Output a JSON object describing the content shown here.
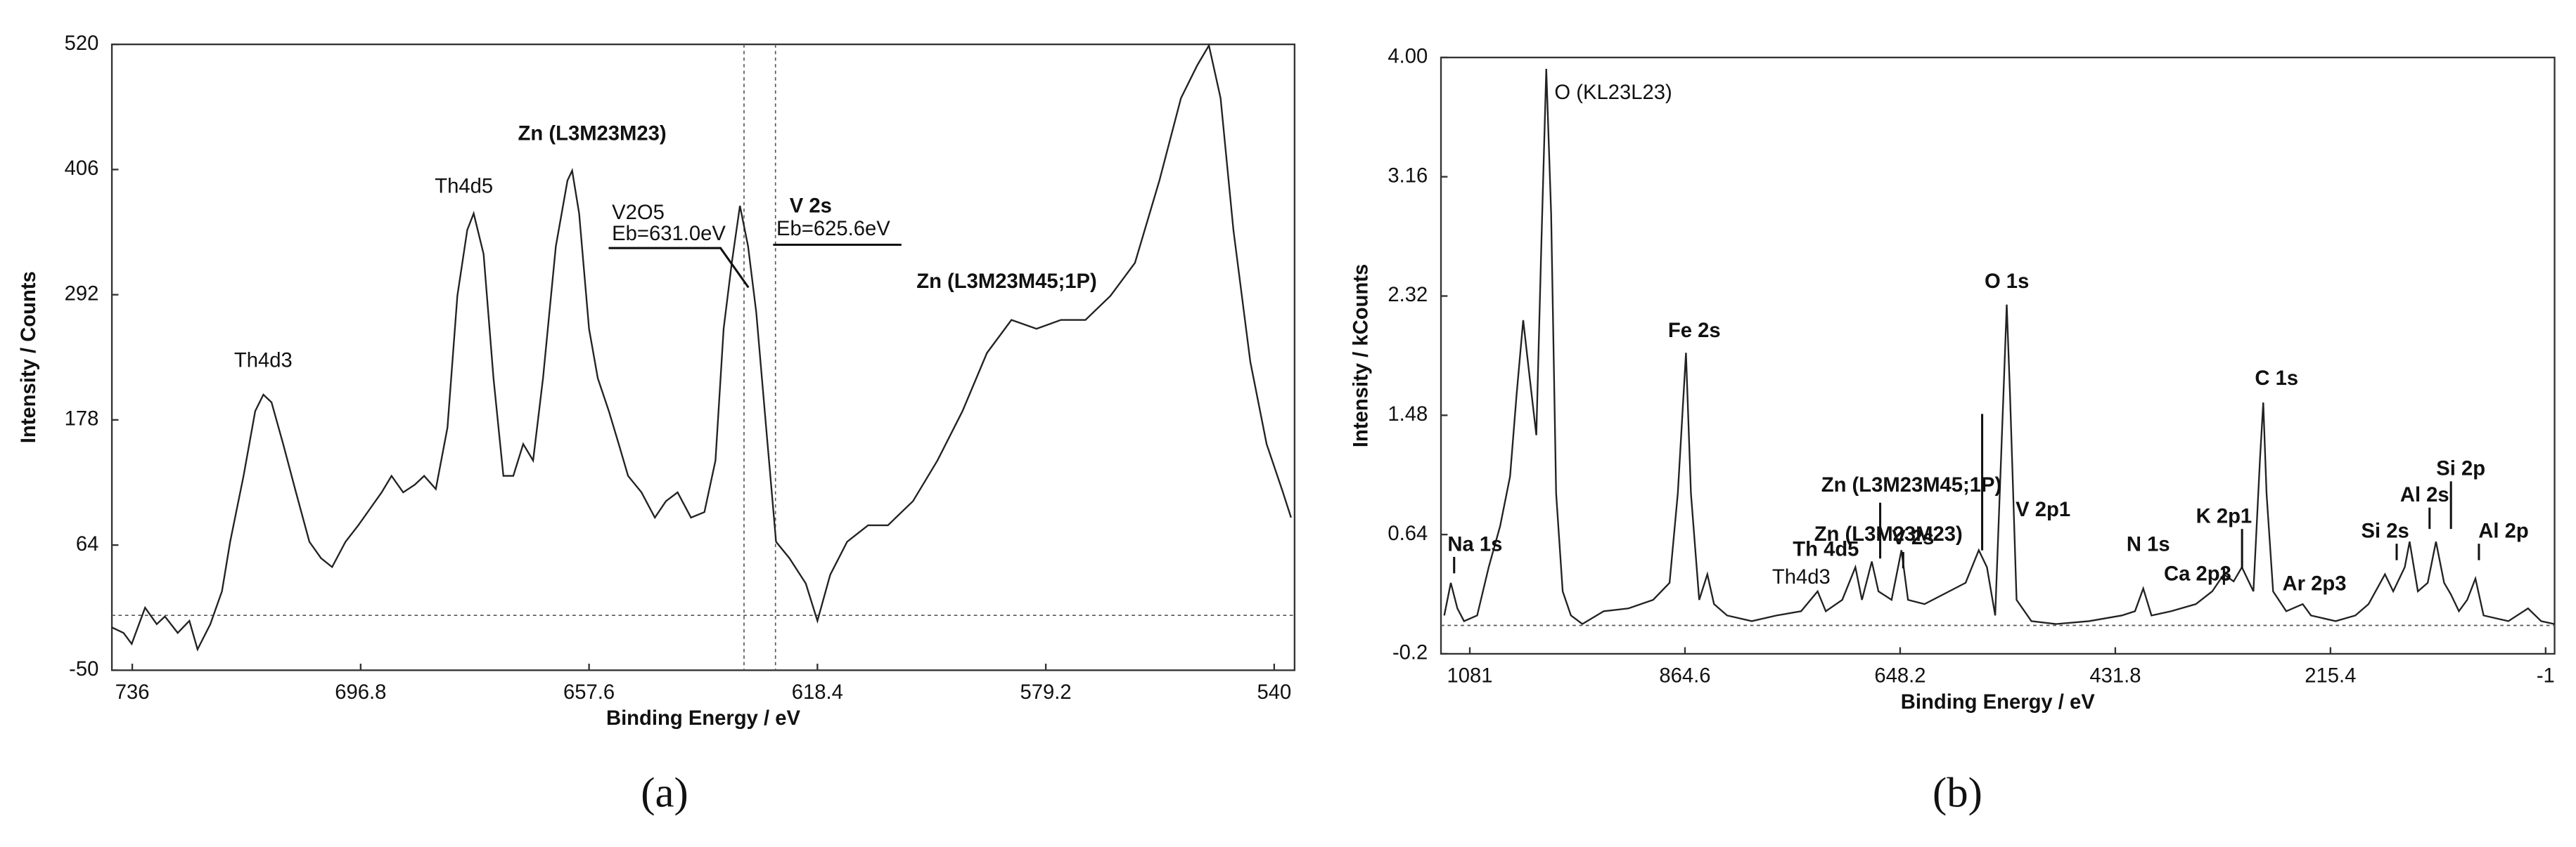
{
  "chart_data": [
    {
      "type": "line",
      "panel_label": "(a)",
      "x_label": "Binding Energy / eV",
      "y_label": "Intensity / Counts",
      "xlim": [
        739.5,
        536.5
      ],
      "xticks": [
        736,
        696.8,
        657.6,
        618.4,
        579.2,
        540
      ],
      "ylim": [
        -50,
        520
      ],
      "yticks": [
        -50,
        64,
        178,
        292,
        406,
        520
      ],
      "vlines": [
        631.0,
        625.6
      ],
      "annotations": [
        "Th4d3",
        "Th4d5",
        "Zn (L3M23M23)",
        "V2O5",
        "Eb=631.0eV",
        "V 2s",
        "Eb=625.6eV",
        "Zn (L3M23M45;1P)"
      ],
      "x": [
        739.5,
        737.5,
        736.1,
        733.8,
        731.8,
        730.4,
        728.2,
        726.2,
        724.8,
        722.6,
        720.6,
        719.2,
        716.9,
        714.9,
        713.5,
        712.1,
        710.1,
        707.9,
        705.6,
        703.6,
        701.7,
        699.4,
        697.2,
        695.2,
        693.2,
        691.5,
        689.5,
        687.5,
        685.9,
        683.9,
        681.9,
        680.2,
        678.5,
        677.4,
        675.7,
        674.0,
        672.3,
        670.6,
        668.9,
        667.2,
        665.5,
        663.3,
        661.3,
        660.5,
        659.3,
        657.6,
        656.1,
        654.2,
        652.5,
        650.9,
        648.6,
        646.3,
        644.4,
        642.4,
        640.1,
        637.8,
        635.9,
        634.5,
        633.1,
        631.7,
        630.3,
        628.9,
        627.2,
        625.5,
        623.2,
        620.4,
        618.4,
        616.2,
        613.3,
        609.7,
        606.3,
        602.0,
        597.8,
        593.5,
        589.3,
        585.1,
        580.8,
        576.6,
        572.4,
        568.1,
        563.9,
        559.7,
        556.0,
        553.2,
        551.2,
        549.2,
        547.0,
        544.1,
        541.3,
        538.5,
        537.1
      ],
      "series": [
        {
          "color": "#222222",
          "values": [
            -11,
            -16,
            -26,
            7,
            -8,
            -1,
            -16,
            -5,
            -31,
            -8,
            22,
            67,
            127,
            186,
            201,
            194,
            156,
            112,
            67,
            52,
            44,
            67,
            82,
            97,
            112,
            127,
            112,
            119,
            127,
            115,
            171,
            291,
            351,
            366,
            329,
            216,
            127,
            127,
            156,
            141,
            216,
            336,
            396,
            405,
            366,
            261,
            216,
            186,
            156,
            127,
            112,
            89,
            104,
            112,
            89,
            94,
            141,
            261,
            321,
            373,
            336,
            276,
            171,
            67,
            52,
            29,
            -5,
            37,
            67,
            82,
            82,
            104,
            141,
            186,
            239,
            269,
            261,
            269,
            269,
            291,
            321,
            396,
            471,
            501,
            519,
            471,
            351,
            231,
            156,
            112,
            89
          ]
        }
      ]
    },
    {
      "type": "line",
      "panel_label": "(b)",
      "x_label": "Binding Energy / eV",
      "y_label": "Intensity / kCounts",
      "xlim": [
        1110,
        -10
      ],
      "xticks": [
        1081,
        864.6,
        648.2,
        431.8,
        215.4,
        -1
      ],
      "ylim": [
        -0.2,
        4.0
      ],
      "yticks": [
        -0.2,
        0.64,
        1.48,
        2.32,
        3.16,
        {
          "value": 4,
          "label": "4.00"
        }
      ],
      "annotations": [
        "O (KL23L23)",
        "Fe 2s",
        "O 1s",
        "C 1s",
        "Zn (L3M23M45;1P)",
        "Zn (L3M23M23)",
        "Th 4d5",
        "V 2s",
        "Th4d3",
        "V 2p1",
        "N 1s",
        "Ca 2p3",
        "K 2p1",
        "Ar 2p3",
        "Si 2s",
        "Al 2s",
        "Si 2p",
        "Al 2p",
        "Na 1s"
      ],
      "x": [
        1106.7,
        1100.1,
        1093.5,
        1086.8,
        1073.6,
        1062.0,
        1050.5,
        1040.5,
        1033.9,
        1027.3,
        1020.7,
        1014.1,
        1009.1,
        1004.1,
        999.2,
        994.2,
        987.6,
        979.3,
        967.8,
        946.3,
        921.4,
        896.6,
        880.1,
        871.8,
        863.6,
        858.6,
        850.3,
        842.1,
        835.4,
        822.2,
        797.4,
        772.6,
        747.8,
        731.2,
        723.0,
        706.4,
        693.2,
        686.6,
        676.7,
        670.0,
        656.8,
        646.9,
        640.3,
        623.7,
        598.9,
        582.4,
        569.1,
        560.9,
        552.6,
        544.3,
        541.0,
        537.7,
        531.1,
        516.2,
        491.4,
        458.3,
        425.2,
        412.0,
        403.7,
        395.4,
        375.6,
        350.8,
        334.3,
        322.7,
        312.8,
        304.5,
        292.9,
        286.3,
        283.0,
        279.7,
        273.1,
        259.9,
        243.3,
        235.0,
        210.2,
        190.4,
        177.1,
        160.6,
        152.3,
        140.7,
        135.8,
        127.5,
        117.6,
        109.3,
        101.1,
        94.4,
        86.2,
        77.9,
        69.6,
        61.4,
        36.5,
        16.7,
        3.5,
        -9.7
      ],
      "series": [
        {
          "color": "#222222",
          "values": [
            0.07,
            0.3,
            0.12,
            0.03,
            0.07,
            0.41,
            0.7,
            1.05,
            1.63,
            2.15,
            1.74,
            1.34,
            2.67,
            3.92,
            2.9,
            0.93,
            0.24,
            0.07,
            0.01,
            0.1,
            0.12,
            0.18,
            0.3,
            0.93,
            1.92,
            0.93,
            0.18,
            0.36,
            0.15,
            0.07,
            0.03,
            0.07,
            0.1,
            0.24,
            0.1,
            0.18,
            0.41,
            0.18,
            0.45,
            0.24,
            0.18,
            0.53,
            0.18,
            0.15,
            0.24,
            0.3,
            0.53,
            0.41,
            0.07,
            1.63,
            2.26,
            1.63,
            0.18,
            0.03,
            0.01,
            0.03,
            0.07,
            0.1,
            0.26,
            0.07,
            0.1,
            0.15,
            0.24,
            0.36,
            0.31,
            0.41,
            0.24,
            1.17,
            1.57,
            0.93,
            0.24,
            0.1,
            0.15,
            0.07,
            0.03,
            0.07,
            0.15,
            0.36,
            0.24,
            0.41,
            0.59,
            0.24,
            0.3,
            0.59,
            0.3,
            0.22,
            0.1,
            0.18,
            0.33,
            0.07,
            0.03,
            0.12,
            0.03,
            0.01
          ]
        }
      ]
    }
  ]
}
